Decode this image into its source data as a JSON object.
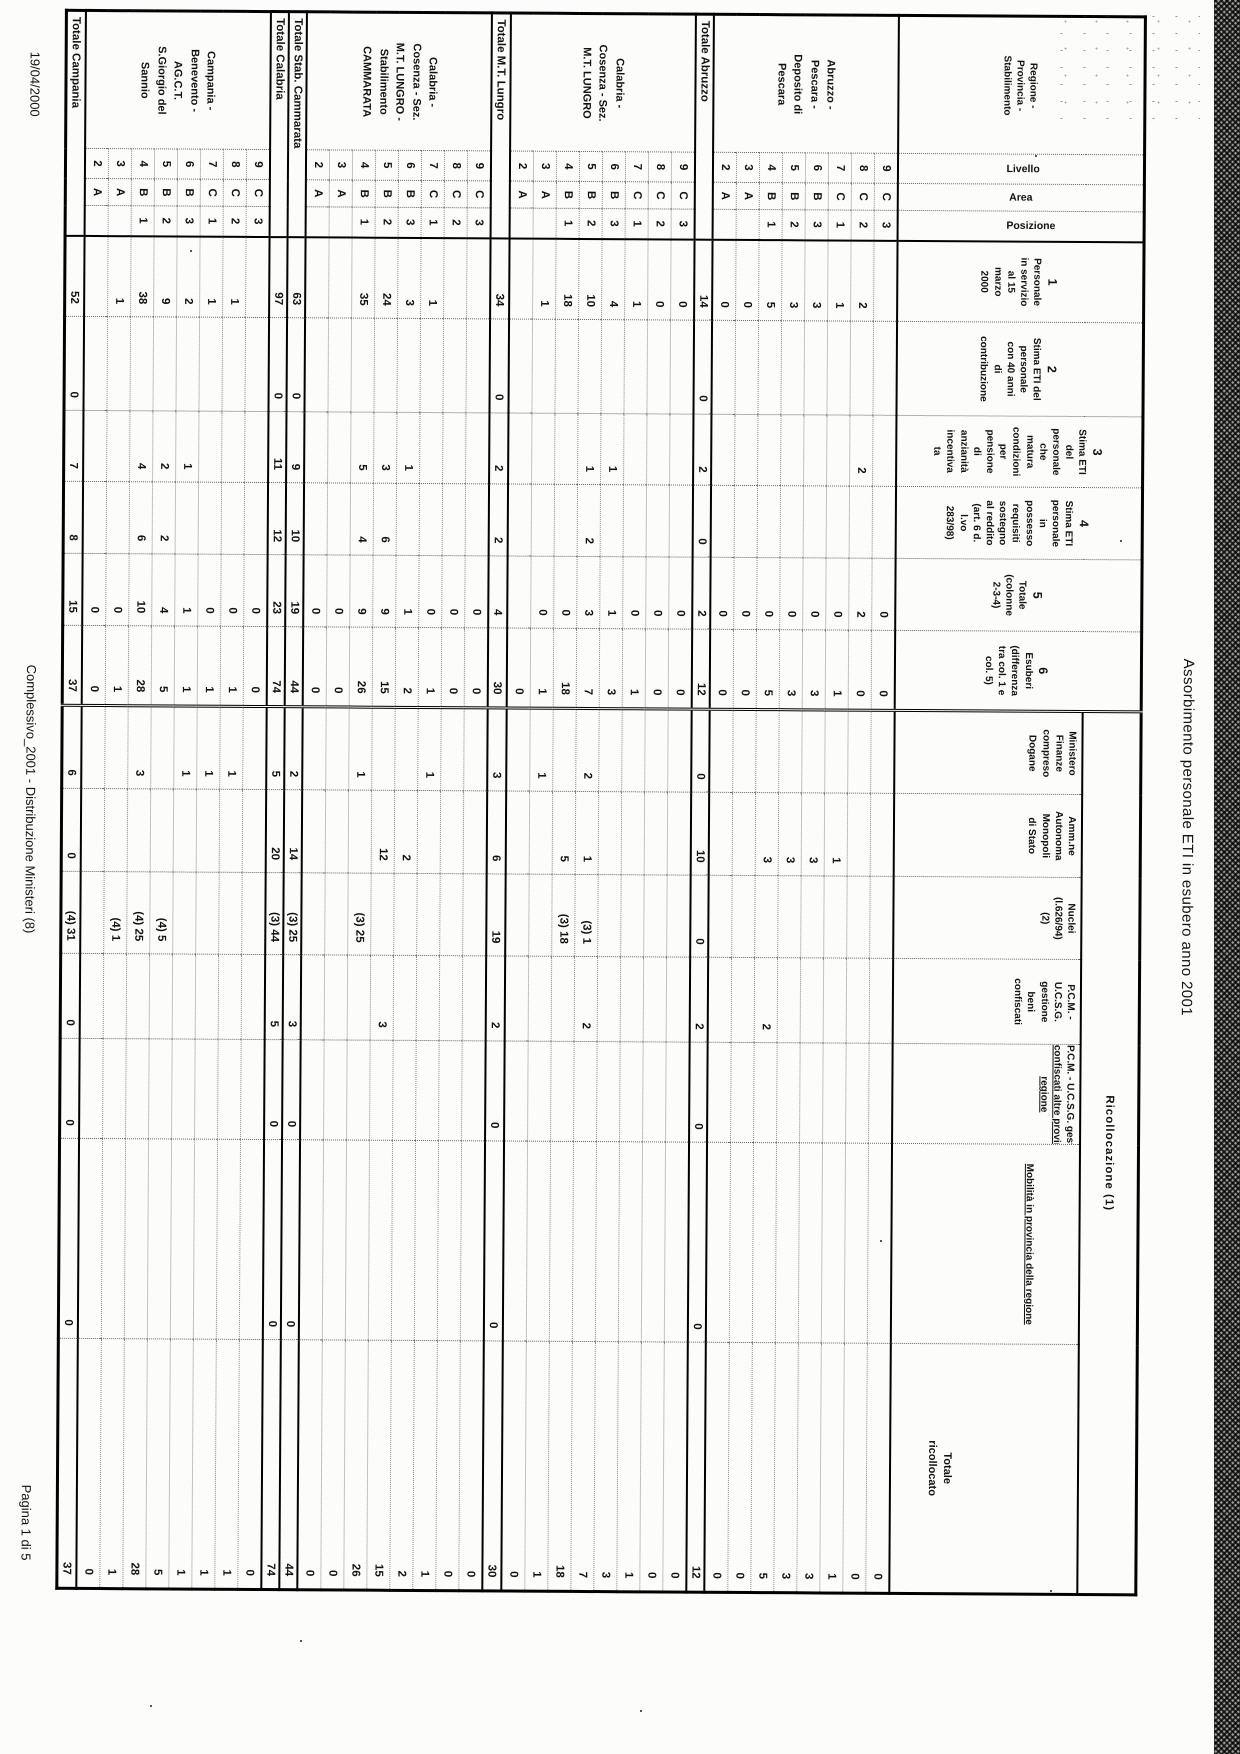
{
  "page": {
    "title": "Assorbimento personale ETI in esubero anno 2001",
    "footer_date": "19/04/2000",
    "footer_center": "Complessivo_2001 - Distribuzione Ministeri (8)",
    "footer_page": "Pagina 1 di 5",
    "ink_color": "#111111",
    "paper_color": "#fcfcfa"
  },
  "table": {
    "group_header": "Ricollocazione (1)",
    "row_label_header": [
      "Regione -",
      "Provincia -",
      "Stabilimento"
    ],
    "level_headers": [
      "Livello",
      "Area",
      "Posizione"
    ],
    "columns": {
      "c1": [
        "1",
        "Personale",
        "in servizio",
        "al 15",
        "marzo",
        "2000"
      ],
      "c2": [
        "2",
        "Stima ETI del",
        "personale",
        "con 40 anni",
        "di",
        "contribuzione"
      ],
      "c3": [
        "3",
        "Stima ETI",
        "del",
        "personale",
        "che",
        "matura",
        "condizioni",
        "per",
        "pensione",
        "di",
        "anzianità",
        "incentiva",
        "ta"
      ],
      "c4": [
        "4",
        "Stima ETI",
        "personale",
        "in",
        "possesso",
        "requisiti",
        "sostegno",
        "al reddito",
        "(art. 6 d.",
        "l.vo",
        "283/98)"
      ],
      "c5": [
        "5",
        "Totale",
        "(colonne",
        "2-3-4)"
      ],
      "c6": [
        "6",
        "Esuberi",
        "(differenza",
        "tra col. 1 e",
        "col. 5)"
      ],
      "min": [
        "Ministero",
        "Finanze",
        "compreso",
        "Dogane"
      ],
      "mon": [
        "Amm.ne",
        "Autonoma",
        "Monopoli",
        "di Stato"
      ],
      "nuc": [
        "Nuclei",
        "(l.626/94)",
        "(2)"
      ],
      "pcm": [
        "P.C.M. -",
        "U.C.S.G.",
        "gestione",
        "beni",
        "confiscati"
      ],
      "alt": [
        "P.C.M. - U.C.S.G. gestione beni",
        "confiscati altre province della",
        "regione"
      ],
      "mob": [
        "Mobilità in provincia della regione"
      ],
      "tot": [
        "Totale",
        "ricollocato"
      ]
    },
    "groups": {
      "abr": {
        "lines": [
          "Abruzzo -",
          "Pescara -",
          "Deposito di",
          "Pescara"
        ]
      },
      "lun": {
        "lines": [
          "Calabria -",
          "Cosenza - Sez.",
          "M.T. LUNGRO"
        ]
      },
      "cam": {
        "lines": [
          "Calabria -",
          "Cosenza - Sez.",
          "M.T. LUNGRO -",
          "Stabilimento",
          "CAMMARATA"
        ]
      },
      "cmp": {
        "lines": [
          "Campania -",
          "Benevento -",
          "AG.C.T.",
          "S.Giorgio del",
          "Sannio"
        ]
      }
    },
    "rows": [
      {
        "g": "abr",
        "l": "9",
        "a": "C",
        "p": "3",
        "v": [
          "",
          "",
          "",
          "",
          "0",
          "0",
          "",
          "",
          "",
          "",
          "",
          "",
          "0"
        ]
      },
      {
        "g": "abr",
        "l": "8",
        "a": "C",
        "p": "2",
        "v": [
          "2",
          "",
          "2",
          "",
          "2",
          "0",
          "",
          "",
          "",
          "",
          "",
          "",
          "0"
        ]
      },
      {
        "g": "abr",
        "l": "7",
        "a": "C",
        "p": "1",
        "v": [
          "1",
          "",
          "",
          "",
          "0",
          "1",
          "",
          "1",
          "",
          "",
          "",
          "",
          "1"
        ]
      },
      {
        "g": "abr",
        "l": "6",
        "a": "B",
        "p": "3",
        "v": [
          "3",
          "",
          "",
          "",
          "0",
          "3",
          "",
          "3",
          "",
          "",
          "",
          "",
          "3"
        ]
      },
      {
        "g": "abr",
        "l": "5",
        "a": "B",
        "p": "2",
        "v": [
          "3",
          "",
          "",
          "",
          "0",
          "3",
          "",
          "3",
          "",
          "",
          "",
          "",
          "3"
        ]
      },
      {
        "g": "abr",
        "l": "4",
        "a": "B",
        "p": "1",
        "v": [
          "5",
          "",
          "",
          "",
          "0",
          "5",
          "",
          "3",
          "",
          "2",
          "",
          "",
          "5"
        ]
      },
      {
        "g": "abr",
        "l": "3",
        "a": "A",
        "p": "",
        "v": [
          "0",
          "",
          "",
          "",
          "0",
          "0",
          "",
          "",
          "",
          "",
          "",
          "",
          "0"
        ]
      },
      {
        "g": "abr",
        "l": "2",
        "a": "A",
        "p": "",
        "v": [
          "0",
          "",
          "",
          "",
          "0",
          "0",
          "",
          "",
          "",
          "",
          "",
          "",
          "0"
        ]
      },
      {
        "t": "Totale Abruzzo",
        "v": [
          "14",
          "0",
          "2",
          "0",
          "2",
          "12",
          "0",
          "10",
          "0",
          "2",
          "0",
          "0",
          "12"
        ]
      },
      {
        "g": "lun",
        "l": "9",
        "a": "C",
        "p": "3",
        "v": [
          "0",
          "",
          "",
          "",
          "0",
          "0",
          "",
          "",
          "",
          "",
          "",
          "",
          "0"
        ]
      },
      {
        "g": "lun",
        "l": "8",
        "a": "C",
        "p": "2",
        "v": [
          "0",
          "",
          "",
          "",
          "0",
          "0",
          "",
          "",
          "",
          "",
          "",
          "",
          "0"
        ]
      },
      {
        "g": "lun",
        "l": "7",
        "a": "C",
        "p": "1",
        "v": [
          "1",
          "",
          "",
          "",
          "0",
          "1",
          "",
          "",
          "",
          "",
          "",
          "",
          "1"
        ]
      },
      {
        "g": "lun",
        "l": "6",
        "a": "B",
        "p": "3",
        "v": [
          "4",
          "",
          "1",
          "",
          "1",
          "3",
          "",
          "",
          "",
          "",
          "",
          "",
          "3"
        ]
      },
      {
        "g": "lun",
        "l": "5",
        "a": "B",
        "p": "2",
        "v": [
          "10",
          "",
          "1",
          "2",
          "3",
          "7",
          "2",
          "1",
          "(3) 1",
          "2",
          "",
          "",
          "7"
        ]
      },
      {
        "g": "lun",
        "l": "4",
        "a": "B",
        "p": "1",
        "v": [
          "18",
          "",
          "",
          "",
          "0",
          "18",
          "",
          "5",
          "(3) 18",
          "",
          "",
          "",
          "18"
        ]
      },
      {
        "g": "lun",
        "l": "3",
        "a": "A",
        "p": "",
        "v": [
          "1",
          "",
          "",
          "",
          "0",
          "1",
          "1",
          "",
          "",
          "",
          "",
          "",
          "1"
        ]
      },
      {
        "g": "lun",
        "l": "2",
        "a": "A",
        "p": "",
        "v": [
          "",
          "",
          "",
          "",
          "",
          "0",
          "",
          "",
          "",
          "",
          "",
          "",
          "0"
        ]
      },
      {
        "t": "Totale M.T. Lungro",
        "v": [
          "34",
          "0",
          "2",
          "2",
          "4",
          "30",
          "3",
          "6",
          "19",
          "2",
          "0",
          "0",
          "30"
        ]
      },
      {
        "g": "cam",
        "l": "9",
        "a": "C",
        "p": "3",
        "v": [
          "",
          "",
          "",
          "",
          "0",
          "0",
          "",
          "",
          "",
          "",
          "",
          "",
          "0"
        ]
      },
      {
        "g": "cam",
        "l": "8",
        "a": "C",
        "p": "2",
        "v": [
          "",
          "",
          "",
          "",
          "0",
          "0",
          "",
          "",
          "",
          "",
          "",
          "",
          "0"
        ]
      },
      {
        "g": "cam",
        "l": "7",
        "a": "C",
        "p": "1",
        "v": [
          "1",
          "",
          "",
          "",
          "0",
          "1",
          "1",
          "",
          "",
          "",
          "",
          "",
          "1"
        ]
      },
      {
        "g": "cam",
        "l": "6",
        "a": "B",
        "p": "3",
        "v": [
          "3",
          "",
          "1",
          "",
          "1",
          "2",
          "",
          "2",
          "",
          "",
          "",
          "",
          "2"
        ]
      },
      {
        "g": "cam",
        "l": "5",
        "a": "B",
        "p": "2",
        "v": [
          "24",
          "",
          "3",
          "6",
          "9",
          "15",
          "",
          "12",
          "",
          "3",
          "",
          "",
          "15"
        ]
      },
      {
        "g": "cam",
        "l": "4",
        "a": "B",
        "p": "1",
        "v": [
          "35",
          "",
          "5",
          "4",
          "9",
          "26",
          "1",
          "",
          "(3) 25",
          "",
          "",
          "",
          "26"
        ]
      },
      {
        "g": "cam",
        "l": "3",
        "a": "A",
        "p": "",
        "v": [
          "",
          "",
          "",
          "",
          "0",
          "0",
          "",
          "",
          "",
          "",
          "",
          "",
          "0"
        ]
      },
      {
        "g": "cam",
        "l": "2",
        "a": "A",
        "p": "",
        "v": [
          "",
          "",
          "",
          "",
          "0",
          "0",
          "",
          "",
          "",
          "",
          "",
          "",
          "0"
        ]
      },
      {
        "t": "Totale Stab. Cammarata",
        "v": [
          "63",
          "0",
          "9",
          "10",
          "19",
          "44",
          "2",
          "14",
          "(3) 25",
          "3",
          "0",
          "0",
          "44"
        ]
      },
      {
        "t": "Totale Calabria",
        "v": [
          "97",
          "0",
          "11",
          "12",
          "23",
          "74",
          "5",
          "20",
          "(3) 44",
          "5",
          "0",
          "0",
          "74"
        ]
      },
      {
        "g": "cmp",
        "l": "9",
        "a": "C",
        "p": "3",
        "v": [
          "",
          "",
          "",
          "",
          "0",
          "0",
          "",
          "",
          "",
          "",
          "",
          "",
          "0"
        ]
      },
      {
        "g": "cmp",
        "l": "8",
        "a": "C",
        "p": "2",
        "v": [
          "1",
          "",
          "",
          "",
          "0",
          "1",
          "1",
          "",
          "",
          "",
          "",
          "",
          "1"
        ]
      },
      {
        "g": "cmp",
        "l": "7",
        "a": "C",
        "p": "1",
        "v": [
          "1",
          "",
          "",
          "",
          "0",
          "1",
          "1",
          "",
          "",
          "",
          "",
          "",
          "1"
        ]
      },
      {
        "g": "cmp",
        "l": "6",
        "a": "B",
        "p": "3",
        "v": [
          "2",
          "",
          "1",
          "",
          "1",
          "1",
          "1",
          "",
          "",
          "",
          "",
          "",
          "1"
        ]
      },
      {
        "g": "cmp",
        "l": "5",
        "a": "B",
        "p": "2",
        "v": [
          "9",
          "",
          "2",
          "2",
          "4",
          "5",
          "",
          "",
          "(4) 5",
          "",
          "",
          "",
          "5"
        ]
      },
      {
        "g": "cmp",
        "l": "4",
        "a": "B",
        "p": "1",
        "v": [
          "38",
          "",
          "4",
          "6",
          "10",
          "28",
          "3",
          "",
          "(4) 25",
          "",
          "",
          "",
          "28"
        ]
      },
      {
        "g": "cmp",
        "l": "3",
        "a": "A",
        "p": "",
        "v": [
          "1",
          "",
          "",
          "",
          "0",
          "1",
          "",
          "",
          "(4) 1",
          "",
          "",
          "",
          "1"
        ]
      },
      {
        "g": "cmp",
        "l": "2",
        "a": "A",
        "p": "",
        "v": [
          "",
          "",
          "",
          "",
          "0",
          "0",
          "",
          "",
          "",
          "",
          "",
          "",
          "0"
        ]
      },
      {
        "t": "Totale Campania",
        "v": [
          "52",
          "0",
          "7",
          "8",
          "15",
          "37",
          "6",
          "0",
          "(4) 31",
          "0",
          "0",
          "0",
          "37"
        ]
      }
    ]
  }
}
